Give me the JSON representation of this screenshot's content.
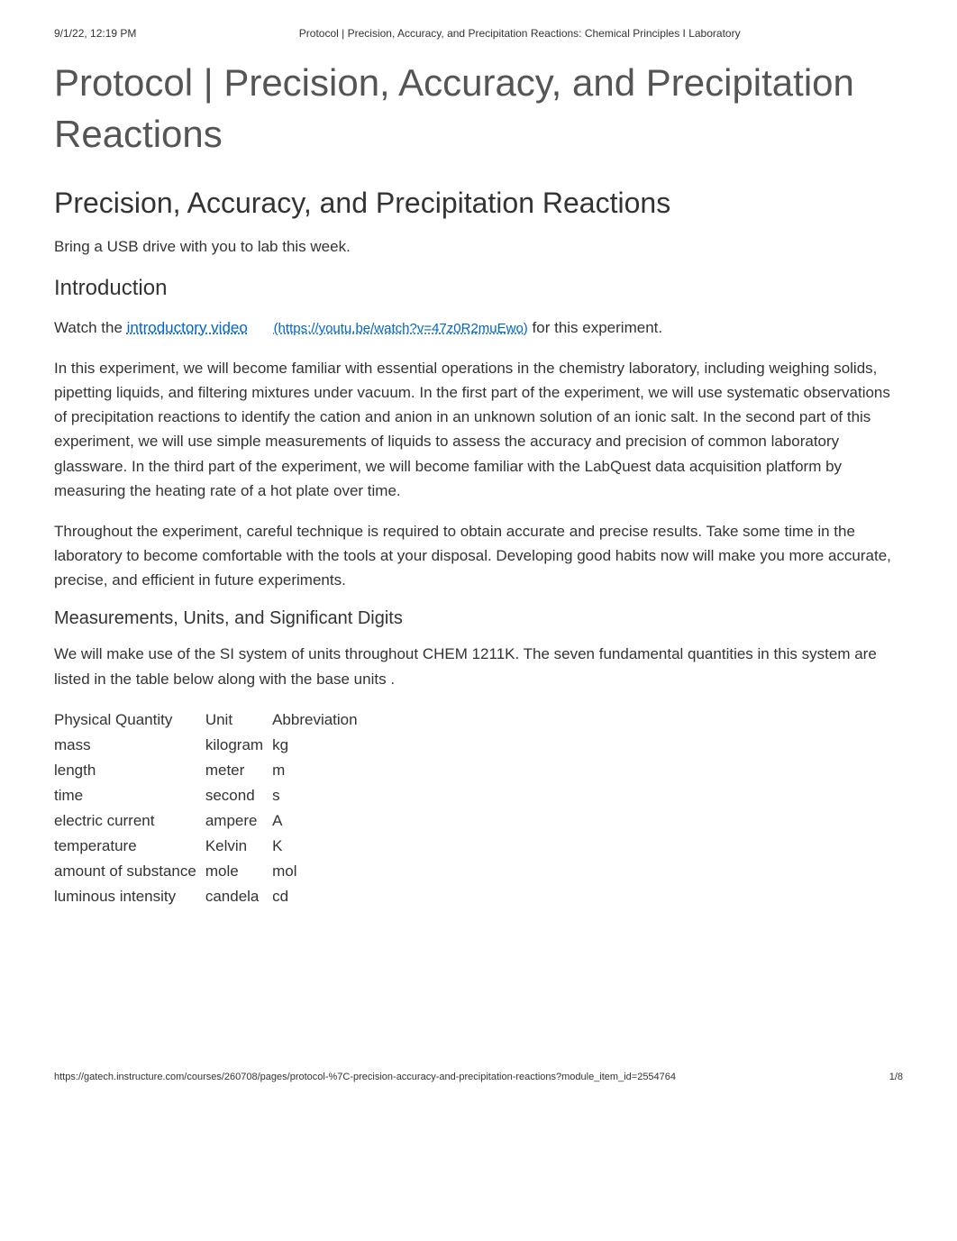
{
  "print_header": {
    "datetime": "9/1/22, 12:19 PM",
    "title": "Protocol | Precision, Accuracy, and Precipitation Reactions: Chemical Principles I Laboratory"
  },
  "h1": "Protocol | Precision, Accuracy, and Precipitation Reactions",
  "h2": "Precision, Accuracy, and Precipitation Reactions",
  "usb_note": "Bring a USB drive with you to lab this week.",
  "h3_intro": "Introduction",
  "video_line": {
    "prefix": "Watch the ",
    "link_text": "introductory video",
    "link_url_display": "(https://youtu.be/watch?v=47z0R2muEwo)",
    "suffix": " for this experiment."
  },
  "para_intro": "In this experiment, we will become familiar with essential operations in the chemistry laboratory, including weighing solids, pipetting liquids, and filtering mixtures under vacuum. In the first part of the experiment, we will use systematic observations of precipitation reactions to identify the cation and anion in an unknown solution of an ionic salt. In the second part of this experiment, we will use simple measurements of liquids to assess the accuracy and precision of common laboratory glassware. In the third part of the experiment, we will become familiar with the LabQuest data acquisition platform by measuring the heating rate of a hot plate over time.",
  "para_technique": "Throughout the experiment, careful technique is required to obtain accurate and precise results. Take some time in the laboratory to become comfortable with the tools at your disposal. Developing good habits now will make you more accurate, precise, and efficient in future experiments.",
  "h4_measurements": "Measurements, Units, and Significant Digits",
  "para_si_prefix": "We will make use of the SI system of units throughout CHEM 1211K. The seven fundamental quantities in this system are listed in the table below along with the ",
  "para_si_baseunits": "base units",
  "para_si_suffix": ".",
  "units_table": {
    "headers": [
      "Physical Quantity",
      "Unit",
      "Abbreviation"
    ],
    "rows": [
      [
        "mass",
        "kilogram",
        "kg"
      ],
      [
        "length",
        "meter",
        "m"
      ],
      [
        "time",
        "second",
        "s"
      ],
      [
        "electric current",
        "ampere",
        "A"
      ],
      [
        "temperature",
        "Kelvin",
        "K"
      ],
      [
        "amount of substance",
        "mole",
        "mol"
      ],
      [
        "luminous intensity",
        "candela",
        "cd"
      ]
    ]
  },
  "print_footer": {
    "url": "https://gatech.instructure.com/courses/260708/pages/protocol-%7C-precision-accuracy-and-precipitation-reactions?module_item_id=2554764",
    "page": "1/8"
  },
  "colors": {
    "link": "#0066cc",
    "heading_gray": "#555555",
    "text": "#333333",
    "background": "#ffffff"
  },
  "typography": {
    "h1_fontsize": 42,
    "h2_fontsize": 32,
    "h3_fontsize": 24,
    "h4_fontsize": 20,
    "body_fontsize": 17,
    "header_footer_fontsize": 12
  }
}
